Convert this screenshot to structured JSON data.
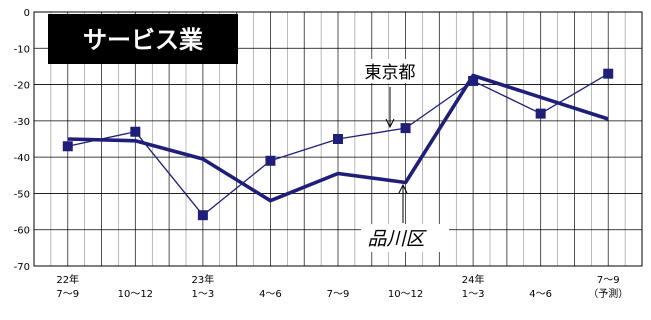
{
  "chart_data": {
    "type": "line",
    "title": "サービス業",
    "x_tick_labels": [
      [
        "22年",
        "7～9"
      ],
      [
        "",
        "10～12"
      ],
      [
        "23年",
        "1～3"
      ],
      [
        "",
        "4～6"
      ],
      [
        "",
        "7～9"
      ],
      [
        "",
        "10～12"
      ],
      [
        "24年",
        "1～3"
      ],
      [
        "",
        "4～6"
      ],
      [
        "7～9",
        "（予測）"
      ]
    ],
    "y_ticks": [
      0,
      -10,
      -20,
      -30,
      -40,
      -50,
      -60,
      -70
    ],
    "ylim": [
      -70,
      0
    ],
    "grid": true,
    "series": [
      {
        "name": "東京都",
        "values": [
          -37,
          -33,
          -56,
          -41,
          -35,
          -32,
          -19,
          -28,
          -17
        ],
        "color": "#1f1f7a",
        "marker": "square",
        "line_style": "thin"
      },
      {
        "name": "品川区",
        "values": [
          -35,
          -35.5,
          -40.5,
          -52,
          -44.5,
          -47,
          -17.5,
          -23.5,
          -29.5
        ],
        "color": "#1f1f7a",
        "marker": "none",
        "line_style": "thick"
      }
    ]
  },
  "colors": {
    "series": "#1f1f7a",
    "title_bg": "#000000",
    "title_text": "#ffffff",
    "grid": "#000000"
  }
}
